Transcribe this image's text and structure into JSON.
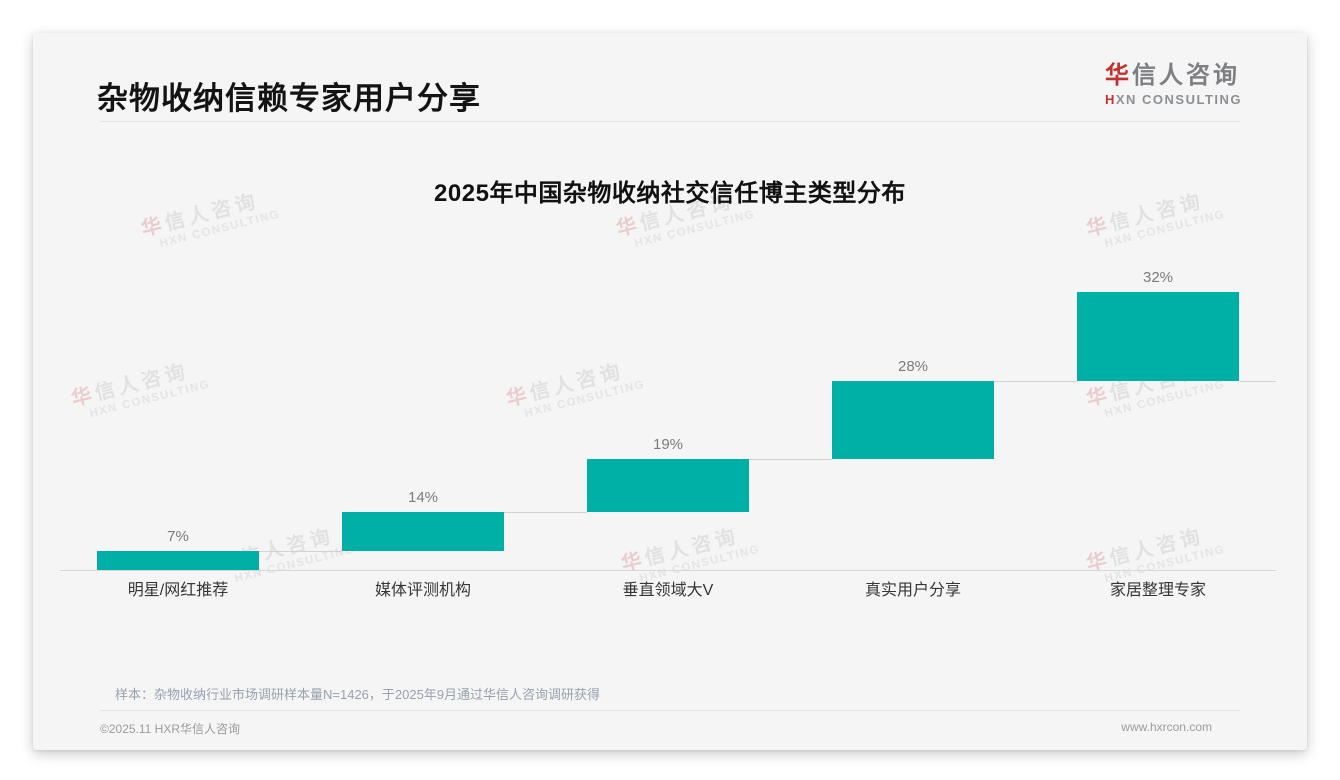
{
  "header": {
    "title": "杂物收纳信赖专家用户分享"
  },
  "brand": {
    "logo_cn_accent": "华",
    "logo_cn_rest": "信人咨询",
    "logo_en_accent": "H",
    "logo_en_rest": "XN CONSULTING",
    "accent_color": "#bf312d",
    "watermark_cn": "华信人咨询",
    "watermark_en": "HXN CONSULTING"
  },
  "chart_data": {
    "type": "bar",
    "variant": "stepped-waterfall",
    "title": "2025年中国杂物收纳社交信任博主类型分布",
    "categories": [
      "明星/网红推荐",
      "媒体评测机构",
      "垂直领域大V",
      "真实用户分享",
      "家居整理专家"
    ],
    "values": [
      7,
      14,
      19,
      28,
      32
    ],
    "unit": "%",
    "cumulative": true,
    "ylim": [
      0,
      100
    ],
    "grid": false,
    "y_axis_shown": false,
    "bar_color": "#00b0a6",
    "connector_color": "#d2d2d3",
    "value_label_color": "#7b7b7b",
    "category_label_color": "#363636"
  },
  "footnote": "样本：杂物收纳行业市场调研样本量N=1426，于2025年9月通过华信人咨询调研获得",
  "footer": {
    "left": "©2025.11 HXR华信人咨询",
    "right": "www.hxrcon.com"
  }
}
